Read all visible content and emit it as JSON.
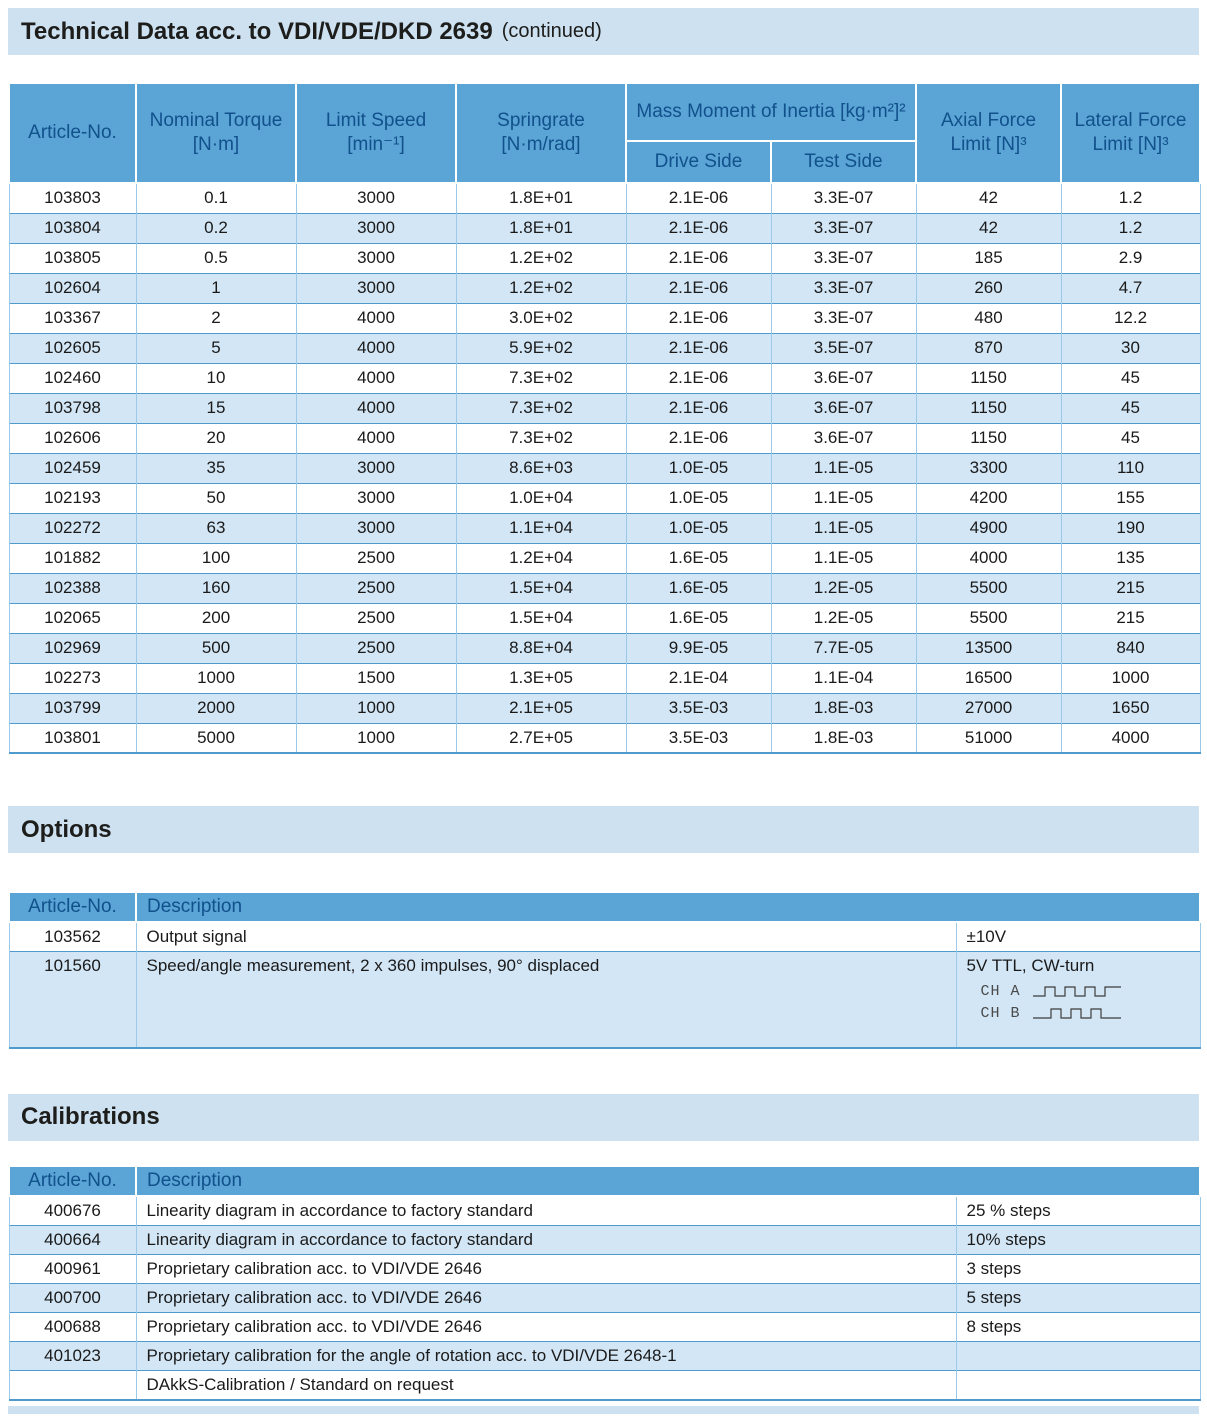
{
  "page": {
    "title_bold": "Technical Data acc. to VDI/VDE/DKD 2639",
    "title_suffix": "(continued)"
  },
  "tech_table": {
    "headers": {
      "article": "Article-No.",
      "torque": "Nominal Torque [N·m]",
      "speed": "Limit Speed [min⁻¹]",
      "springrate": "Springrate [N·m/rad]",
      "inertia": "Mass Moment of Inertia [kg·m²]²",
      "drive_side": "Drive Side",
      "test_side": "Test Side",
      "axial": "Axial Force Limit [N]³",
      "lateral": "Lateral Force Limit [N]³"
    },
    "rows": [
      [
        "103803",
        "0.1",
        "3000",
        "1.8E+01",
        "2.1E-06",
        "3.3E-07",
        "42",
        "1.2"
      ],
      [
        "103804",
        "0.2",
        "3000",
        "1.8E+01",
        "2.1E-06",
        "3.3E-07",
        "42",
        "1.2"
      ],
      [
        "103805",
        "0.5",
        "3000",
        "1.2E+02",
        "2.1E-06",
        "3.3E-07",
        "185",
        "2.9"
      ],
      [
        "102604",
        "1",
        "3000",
        "1.2E+02",
        "2.1E-06",
        "3.3E-07",
        "260",
        "4.7"
      ],
      [
        "103367",
        "2",
        "4000",
        "3.0E+02",
        "2.1E-06",
        "3.3E-07",
        "480",
        "12.2"
      ],
      [
        "102605",
        "5",
        "4000",
        "5.9E+02",
        "2.1E-06",
        "3.5E-07",
        "870",
        "30"
      ],
      [
        "102460",
        "10",
        "4000",
        "7.3E+02",
        "2.1E-06",
        "3.6E-07",
        "1150",
        "45"
      ],
      [
        "103798",
        "15",
        "4000",
        "7.3E+02",
        "2.1E-06",
        "3.6E-07",
        "1150",
        "45"
      ],
      [
        "102606",
        "20",
        "4000",
        "7.3E+02",
        "2.1E-06",
        "3.6E-07",
        "1150",
        "45"
      ],
      [
        "102459",
        "35",
        "3000",
        "8.6E+03",
        "1.0E-05",
        "1.1E-05",
        "3300",
        "110"
      ],
      [
        "102193",
        "50",
        "3000",
        "1.0E+04",
        "1.0E-05",
        "1.1E-05",
        "4200",
        "155"
      ],
      [
        "102272",
        "63",
        "3000",
        "1.1E+04",
        "1.0E-05",
        "1.1E-05",
        "4900",
        "190"
      ],
      [
        "101882",
        "100",
        "2500",
        "1.2E+04",
        "1.6E-05",
        "1.1E-05",
        "4000",
        "135"
      ],
      [
        "102388",
        "160",
        "2500",
        "1.5E+04",
        "1.6E-05",
        "1.2E-05",
        "5500",
        "215"
      ],
      [
        "102065",
        "200",
        "2500",
        "1.5E+04",
        "1.6E-05",
        "1.2E-05",
        "5500",
        "215"
      ],
      [
        "102969",
        "500",
        "2500",
        "8.8E+04",
        "9.9E-05",
        "7.7E-05",
        "13500",
        "840"
      ],
      [
        "102273",
        "1000",
        "1500",
        "1.3E+05",
        "2.1E-04",
        "1.1E-04",
        "16500",
        "1000"
      ],
      [
        "103799",
        "2000",
        "1000",
        "2.1E+05",
        "3.5E-03",
        "1.8E-03",
        "27000",
        "1650"
      ],
      [
        "103801",
        "5000",
        "1000",
        "2.7E+05",
        "3.5E-03",
        "1.8E-03",
        "51000",
        "4000"
      ]
    ]
  },
  "options": {
    "heading": "Options",
    "headers": {
      "article": "Article-No.",
      "description": "Description"
    },
    "row1": {
      "article": "103562",
      "description": "Output signal",
      "value": "±10V"
    },
    "row2": {
      "article": "101560",
      "description": "Speed/angle measurement, 2 x 360 impulses, 90° displaced",
      "value": "5V TTL, CW-turn",
      "channel_a_label": "CH A",
      "channel_b_label": "CH B"
    }
  },
  "calibrations": {
    "heading": "Calibrations",
    "headers": {
      "article": "Article-No.",
      "description": "Description"
    },
    "rows": [
      {
        "article": "400676",
        "description": "Linearity diagram in accordance to factory standard",
        "value": "25 % steps"
      },
      {
        "article": "400664",
        "description": "Linearity diagram in accordance to factory standard",
        "value": "10% steps"
      },
      {
        "article": "400961",
        "description": "Proprietary calibration acc. to VDI/VDE 2646",
        "value": "3 steps"
      },
      {
        "article": "400700",
        "description": "Proprietary calibration acc. to VDI/VDE 2646",
        "value": "5 steps"
      },
      {
        "article": "400688",
        "description": "Proprietary calibration acc. to VDI/VDE 2646",
        "value": "8 steps"
      },
      {
        "article": "401023",
        "description": "Proprietary calibration for the angle of rotation acc. to VDI/VDE 2648-1",
        "value": ""
      },
      {
        "article": "",
        "description": "DAkkS-Calibration / Standard on request",
        "value": ""
      }
    ]
  },
  "colors": {
    "section_bar_bg": "#cde1f1",
    "table_header_bg": "#5ba4d6",
    "table_header_text": "#11518c",
    "row_stripe_bg": "#d3e6f5",
    "row_border": "#4f9bce",
    "column_border": "#9dc9e8",
    "body_text": "#1a1a1a"
  }
}
